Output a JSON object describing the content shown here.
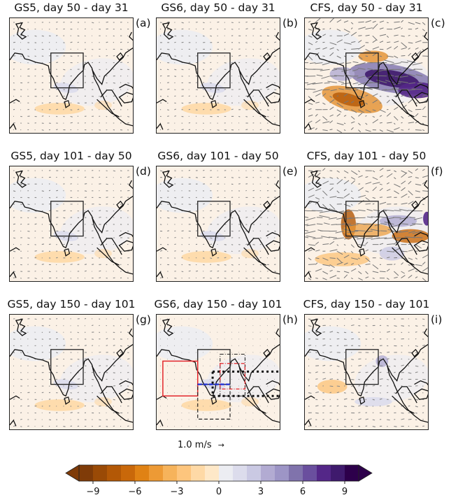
{
  "chart_data": {
    "type": "heatmap",
    "description_panels": [
      {
        "id": "a",
        "label": "(a)",
        "title": "GS5, day 50 - day 31",
        "model": "GS5",
        "intensity": "weak"
      },
      {
        "id": "b",
        "label": "(b)",
        "title": "GS6, day 50 - day 31",
        "model": "GS6",
        "intensity": "weak"
      },
      {
        "id": "c",
        "label": "(c)",
        "title": "CFS, day 50 - day 31",
        "model": "CFS",
        "intensity": "strong"
      },
      {
        "id": "d",
        "label": "(d)",
        "title": "GS5, day 101 - day 50",
        "model": "GS5",
        "intensity": "weak"
      },
      {
        "id": "e",
        "label": "(e)",
        "title": "GS6, day 101 - day 50",
        "model": "GS6",
        "intensity": "weak"
      },
      {
        "id": "f",
        "label": "(f)",
        "title": "CFS, day 101 - day 50",
        "model": "CFS",
        "intensity": "strong"
      },
      {
        "id": "g",
        "label": "(g)",
        "title": "GS5, day 150 - day 101",
        "model": "GS5",
        "intensity": "weak"
      },
      {
        "id": "h",
        "label": "(h)",
        "title": "GS6, day 150 - day 101",
        "model": "GS6",
        "intensity": "weak",
        "extra_boxes": true
      },
      {
        "id": "i",
        "label": "(i)",
        "title": "CFS, day 150 - day 101",
        "model": "CFS",
        "intensity": "moderate"
      }
    ],
    "vector_key": "1.0 m/s",
    "colorbar": {
      "min": -10,
      "max": 10,
      "step": 1,
      "extend": "both",
      "ticks": [
        -9,
        -6,
        -3,
        0,
        3,
        6,
        9
      ],
      "tick_labels": [
        "−9",
        "−6",
        "−3",
        "0",
        "3",
        "6",
        "9"
      ],
      "colormap": "PuOr",
      "colors": [
        "#7f3b08",
        "#9a4a06",
        "#b35806",
        "#c9680a",
        "#e08214",
        "#ed9a35",
        "#f6b35b",
        "#fdc57d",
        "#fed9a6",
        "#fee8c8",
        "#f7f0e8",
        "#ecedf2",
        "#dcdcec",
        "#cac9e3",
        "#b2abd2",
        "#9d95c6",
        "#8073ac",
        "#6a4f9e",
        "#542788",
        "#3f1a6d",
        "#2d004b"
      ]
    }
  },
  "colors": {
    "box_black": "#222222",
    "box_red": "#e3262b",
    "line_blue": "#1f2fd6"
  }
}
